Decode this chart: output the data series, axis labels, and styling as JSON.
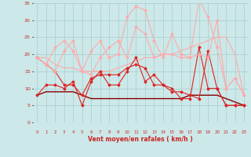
{
  "x": [
    0,
    1,
    2,
    3,
    4,
    5,
    6,
    7,
    8,
    9,
    10,
    11,
    12,
    13,
    14,
    15,
    16,
    17,
    18,
    19,
    20,
    21,
    22,
    23
  ],
  "series": [
    {
      "y": [
        19,
        17,
        15,
        11,
        11,
        8,
        13,
        14,
        14,
        14,
        16,
        17,
        16,
        11,
        11,
        9,
        9,
        8,
        7,
        21,
        10,
        5,
        5,
        5
      ],
      "color": "#dd2222",
      "lw": 0.8,
      "marker": "D",
      "ms": 1.5
    },
    {
      "y": [
        8,
        11,
        11,
        10,
        12,
        5,
        12,
        15,
        11,
        11,
        15,
        19,
        12,
        14,
        11,
        10,
        7,
        7,
        22,
        10,
        10,
        5,
        5,
        5
      ],
      "color": "#dd2222",
      "lw": 0.8,
      "marker": "D",
      "ms": 1.5
    },
    {
      "y": [
        8,
        9,
        9,
        9,
        9,
        8,
        7,
        7,
        7,
        7,
        7,
        7,
        7,
        7,
        7,
        7,
        7,
        8,
        8,
        8,
        8,
        7,
        6,
        5
      ],
      "color": "#880000",
      "lw": 1.0,
      "marker": null,
      "ms": 0
    },
    {
      "y": [
        19,
        17,
        15,
        21,
        24,
        15,
        21,
        24,
        19,
        20,
        31,
        34,
        33,
        24,
        19,
        26,
        20,
        19,
        36,
        31,
        22,
        10,
        13,
        8
      ],
      "color": "#ffaaaa",
      "lw": 0.8,
      "marker": "D",
      "ms": 1.5
    },
    {
      "y": [
        19,
        17,
        22,
        24,
        21,
        15,
        14,
        19,
        22,
        24,
        19,
        28,
        26,
        19,
        20,
        20,
        19,
        19,
        20,
        19,
        30,
        10,
        13,
        8
      ],
      "color": "#ffaaaa",
      "lw": 0.8,
      "marker": "D",
      "ms": 1.5
    },
    {
      "y": [
        19,
        19,
        17,
        16,
        16,
        15,
        15,
        15,
        15,
        16,
        17,
        18,
        19,
        19,
        20,
        20,
        21,
        22,
        23,
        24,
        25,
        25,
        20,
        8
      ],
      "color": "#ffaaaa",
      "lw": 0.8,
      "marker": null,
      "ms": 0
    }
  ],
  "arrows": [
    "↑",
    "↑",
    "↖",
    "↑",
    "↑",
    "↖",
    "↑",
    "↑",
    "↑",
    "↑",
    "↑",
    "↑",
    "↗",
    "↑",
    "↖",
    "↘",
    "→",
    "↘",
    "↗",
    "↖",
    "→",
    "↖",
    "↙",
    "↖"
  ],
  "xlabel": "Vent moyen/en rafales ( km/h )",
  "xlim": [
    -0.5,
    23.5
  ],
  "ylim": [
    0,
    35
  ],
  "yticks": [
    0,
    5,
    10,
    15,
    20,
    25,
    30,
    35
  ],
  "xticks": [
    0,
    1,
    2,
    3,
    4,
    5,
    6,
    7,
    8,
    9,
    10,
    11,
    12,
    13,
    14,
    15,
    16,
    17,
    18,
    19,
    20,
    21,
    22,
    23
  ],
  "bg_color": "#cce8e8",
  "grid_color": "#aacccc",
  "arrow_color": "#cc2222",
  "xlabel_color": "#cc2222",
  "tick_color": "#cc2222"
}
